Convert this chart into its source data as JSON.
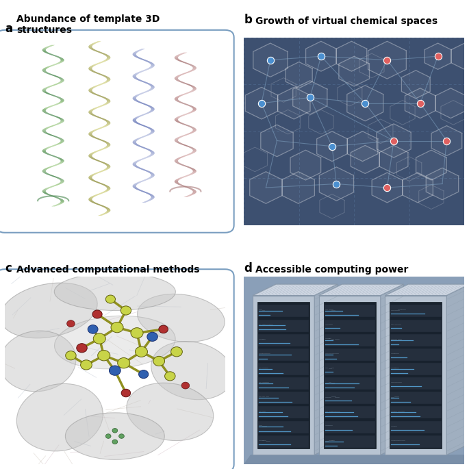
{
  "panel_a_title": "Abundance of template 3D\nstructures",
  "panel_b_title": "Growth of virtual chemical spaces",
  "panel_c_title": "Advanced computational methods",
  "panel_d_title": "Accessible computing power",
  "label_a": "a",
  "label_b": "b",
  "label_c": "c",
  "label_d": "d",
  "bg_color": "#ffffff",
  "panel_a_border": "#7a9ec0",
  "panel_b_bg": "#3d5070",
  "panel_c_border": "#7a9ec0",
  "panel_d_bg": "#8a9fb8",
  "panel_d_border": "#7a9ec0",
  "blue_dot_color": "#4a8fd0",
  "red_dot_color": "#e06060",
  "server_front": "#b8c4d4",
  "server_side": "#a0afc0",
  "server_top": "#ccd4e0",
  "server_screen_bg": "#2a3a50",
  "server_blue_led": "#5aaae0"
}
